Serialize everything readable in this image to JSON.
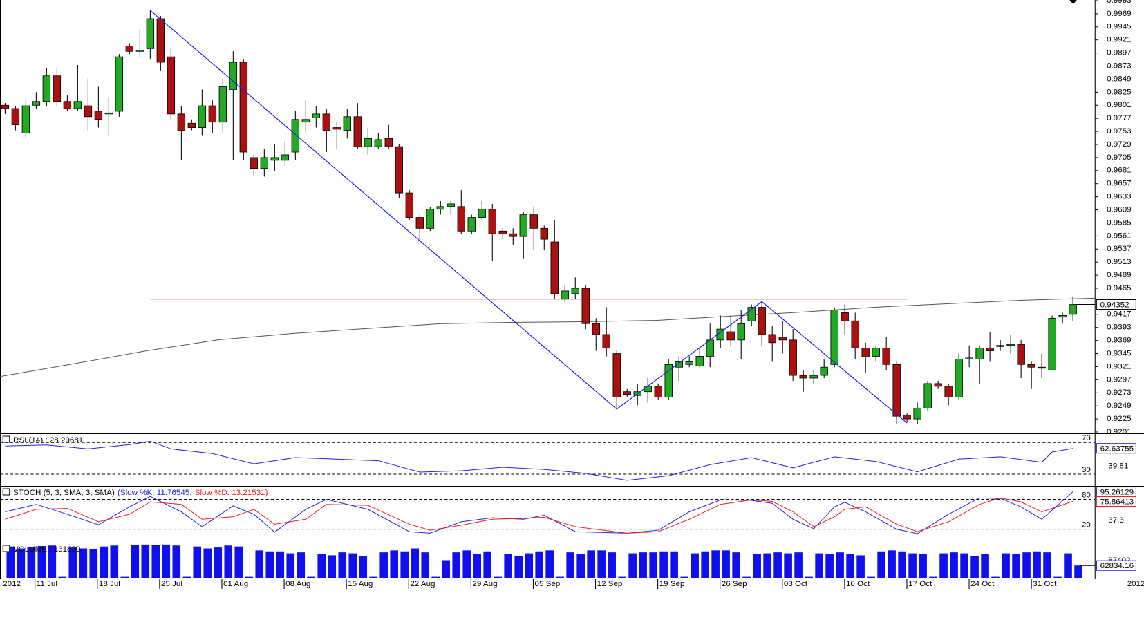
{
  "chart_data": [
    {
      "type": "candlestick",
      "up_color": "#22aa22",
      "down_color": "#aa1111",
      "open": [
        0.9801,
        0.9795,
        0.975,
        0.9801,
        0.9808,
        0.9855,
        0.9808,
        0.9795,
        0.98,
        0.979,
        0.9785,
        0.979,
        0.991,
        0.99,
        0.9905,
        0.996,
        0.989,
        0.9785,
        0.9768,
        0.976,
        0.98,
        0.977,
        0.983,
        0.988,
        0.9705,
        0.9685,
        0.97,
        0.97,
        0.9715,
        0.977,
        0.9778,
        0.9785,
        0.976,
        0.9755,
        0.978,
        0.9725,
        0.9725,
        0.974,
        0.9725,
        0.964,
        0.9595,
        0.9575,
        0.961,
        0.9615,
        0.9615,
        0.957,
        0.9595,
        0.961,
        0.957,
        0.9565,
        0.956,
        0.96,
        0.9575,
        0.955,
        0.9445,
        0.9455,
        0.9465,
        0.94,
        0.938,
        0.9345,
        0.9275,
        0.9268,
        0.9275,
        0.9285,
        0.9265,
        0.932,
        0.9325,
        0.9322,
        0.934,
        0.937,
        0.9385,
        0.937,
        0.9405,
        0.943,
        0.938,
        0.9375,
        0.937,
        0.9305,
        0.93,
        0.9305,
        0.9325,
        0.942,
        0.9405,
        0.9355,
        0.934,
        0.9355,
        0.9325,
        0.9232,
        0.9225,
        0.9245,
        0.929,
        0.9285,
        0.9265,
        0.9335,
        0.9335,
        0.9355,
        0.9358,
        0.936,
        0.9362,
        0.9325,
        0.932,
        0.9315,
        0.9412,
        0.9417
      ],
      "high": [
        0.9805,
        0.98,
        0.981,
        0.9825,
        0.987,
        0.987,
        0.982,
        0.9875,
        0.985,
        0.9835,
        0.9815,
        0.9895,
        0.9915,
        0.994,
        0.9975,
        0.9965,
        0.9905,
        0.98,
        0.9775,
        0.983,
        0.981,
        0.985,
        0.99,
        0.9885,
        0.971,
        0.972,
        0.973,
        0.9735,
        0.979,
        0.981,
        0.98,
        0.9795,
        0.977,
        0.9795,
        0.9805,
        0.976,
        0.975,
        0.9765,
        0.973,
        0.9645,
        0.96,
        0.9615,
        0.9625,
        0.9625,
        0.9645,
        0.96,
        0.9625,
        0.962,
        0.9575,
        0.9575,
        0.9605,
        0.9615,
        0.958,
        0.959,
        0.947,
        0.9485,
        0.947,
        0.941,
        0.943,
        0.935,
        0.928,
        0.929,
        0.93,
        0.929,
        0.9335,
        0.934,
        0.934,
        0.9355,
        0.94,
        0.9415,
        0.9415,
        0.9425,
        0.9435,
        0.944,
        0.9395,
        0.9405,
        0.939,
        0.9315,
        0.9315,
        0.9335,
        0.943,
        0.9435,
        0.942,
        0.9365,
        0.936,
        0.9375,
        0.933,
        0.9235,
        0.9255,
        0.9295,
        0.9295,
        0.929,
        0.9345,
        0.936,
        0.936,
        0.9385,
        0.937,
        0.938,
        0.937,
        0.933,
        0.9345,
        0.9415,
        0.942,
        0.945
      ],
      "low": [
        0.9785,
        0.9755,
        0.974,
        0.9795,
        0.98,
        0.98,
        0.979,
        0.979,
        0.9755,
        0.976,
        0.9745,
        0.978,
        0.9895,
        0.989,
        0.9885,
        0.9865,
        0.9775,
        0.97,
        0.9755,
        0.9745,
        0.975,
        0.975,
        0.97,
        0.97,
        0.967,
        0.967,
        0.968,
        0.969,
        0.97,
        0.975,
        0.976,
        0.9715,
        0.972,
        0.974,
        0.972,
        0.971,
        0.972,
        0.972,
        0.963,
        0.959,
        0.9555,
        0.957,
        0.96,
        0.96,
        0.9565,
        0.9565,
        0.959,
        0.9515,
        0.9555,
        0.9545,
        0.952,
        0.9535,
        0.9535,
        0.9445,
        0.944,
        0.9445,
        0.939,
        0.935,
        0.934,
        0.9245,
        0.9265,
        0.925,
        0.9255,
        0.926,
        0.926,
        0.9295,
        0.932,
        0.932,
        0.932,
        0.9355,
        0.936,
        0.9335,
        0.9395,
        0.936,
        0.933,
        0.9345,
        0.9295,
        0.9275,
        0.929,
        0.93,
        0.932,
        0.938,
        0.9335,
        0.931,
        0.933,
        0.9315,
        0.9215,
        0.922,
        0.9215,
        0.924,
        0.928,
        0.925,
        0.926,
        0.932,
        0.929,
        0.933,
        0.935,
        0.9345,
        0.93,
        0.928,
        0.93,
        0.9315,
        0.94,
        0.9405
      ],
      "close": [
        0.9795,
        0.9765,
        0.98,
        0.9808,
        0.9855,
        0.9808,
        0.9795,
        0.9808,
        0.978,
        0.9775,
        0.9787,
        0.989,
        0.99,
        0.9902,
        0.996,
        0.988,
        0.9785,
        0.9755,
        0.976,
        0.98,
        0.977,
        0.9835,
        0.988,
        0.9715,
        0.9685,
        0.9705,
        0.9705,
        0.971,
        0.9775,
        0.9775,
        0.9785,
        0.9755,
        0.9757,
        0.978,
        0.9725,
        0.974,
        0.9738,
        0.9725,
        0.964,
        0.9595,
        0.9575,
        0.961,
        0.9615,
        0.962,
        0.957,
        0.9595,
        0.961,
        0.9565,
        0.9565,
        0.956,
        0.96,
        0.9575,
        0.9555,
        0.9455,
        0.946,
        0.9465,
        0.94,
        0.938,
        0.9355,
        0.9265,
        0.927,
        0.9275,
        0.9285,
        0.9265,
        0.9325,
        0.933,
        0.933,
        0.934,
        0.937,
        0.939,
        0.937,
        0.94,
        0.943,
        0.938,
        0.9365,
        0.937,
        0.9305,
        0.93,
        0.9305,
        0.932,
        0.9425,
        0.9405,
        0.9355,
        0.934,
        0.9355,
        0.9325,
        0.923,
        0.9225,
        0.9245,
        0.929,
        0.9285,
        0.9265,
        0.9335,
        0.9337,
        0.9355,
        0.935,
        0.936,
        0.9362,
        0.9325,
        0.932,
        0.9318,
        0.941,
        0.9415,
        0.9435
      ],
      "ylim": [
        0.9201,
        0.9993
      ],
      "yticks": [
        0.9201,
        0.9225,
        0.9249,
        0.9273,
        0.9297,
        0.9321,
        0.9345,
        0.9369,
        0.9393,
        0.9417,
        0.9465,
        0.9489,
        0.9513,
        0.9537,
        0.9561,
        0.9585,
        0.9609,
        0.9633,
        0.9657,
        0.9681,
        0.9705,
        0.9729,
        0.9753,
        0.9777,
        0.9801,
        0.9825,
        0.9849,
        0.9873,
        0.9897,
        0.9921,
        0.9945,
        0.9969,
        0.9993
      ],
      "last_price": 0.94352,
      "moving_average": {
        "color": "#555555",
        "x": [
          -0.5,
          6.5,
          13.6,
          20.6,
          27.7,
          34.7,
          41.8,
          48.8,
          55.8,
          62.9,
          69.9,
          77,
          84,
          91,
          98.1,
          105.1
        ],
        "values": [
          0.93029,
          0.93258,
          0.935,
          0.93704,
          0.93818,
          0.93908,
          0.93997,
          0.94022,
          0.94035,
          0.9406,
          0.94137,
          0.94213,
          0.94302,
          0.94366,
          0.9443,
          0.94468
        ]
      },
      "trend_line": {
        "color": "#2222ee",
        "x": [
          14,
          59,
          73,
          87
        ],
        "values": [
          0.99752,
          0.92431,
          0.94404,
          0.92175
        ]
      },
      "level_line": {
        "color": "#ee2222",
        "x": [
          14,
          87
        ],
        "value": 0.9445
      },
      "x_labels": [
        "2012",
        "11 Jul",
        "18 Jul",
        "25 Jul",
        "01 Aug",
        "08 Aug",
        "15 Aug",
        "22 Aug",
        "29 Aug",
        "05 Sep",
        "12 Sep",
        "19 Sep",
        "26 Sep",
        "03 Oct",
        "10 Oct",
        "17 Oct",
        "24 Oct",
        "31 Oct",
        "2012"
      ]
    },
    {
      "type": "line",
      "title_parts": [
        "RSI (14) : 28.29681"
      ],
      "ylim": [
        16,
        79
      ],
      "levels": [
        70,
        30
      ],
      "x": [
        0,
        4,
        8,
        12,
        14,
        16,
        20,
        24,
        28,
        32,
        36,
        40,
        44,
        48,
        52,
        56,
        60,
        64,
        68,
        72,
        76,
        80,
        84,
        88,
        92,
        96,
        100,
        101,
        103
      ],
      "series": [
        {
          "color": "#2222dd",
          "values": [
            65.7,
            67,
            62,
            67.4,
            71.7,
            62,
            56,
            43,
            51,
            49,
            47,
            32.6,
            34.3,
            38.7,
            36,
            31,
            22.2,
            28,
            42,
            50.9,
            38,
            52,
            46,
            33,
            49,
            52,
            45,
            58,
            62.6
          ]
        }
      ],
      "last_values": [
        62.63755
      ],
      "marks": [
        39.81
      ]
    },
    {
      "type": "line",
      "title_parts": [
        "STOCH (5, 3, SMA, 3, SMA)",
        "(Slow %K: 11.76545,",
        "Slow %D: 13.21531)"
      ],
      "ylim": [
        0,
        103
      ],
      "levels": [
        80,
        20
      ],
      "x": [
        0,
        3,
        6,
        9,
        12,
        14,
        17,
        19,
        22,
        24,
        26,
        29,
        31,
        35,
        39,
        41,
        44,
        47,
        50,
        52,
        55,
        60,
        63,
        66,
        69,
        72,
        74,
        76,
        78,
        80,
        81,
        83,
        86,
        88,
        91,
        94,
        96,
        98,
        100,
        103
      ],
      "series": [
        {
          "color": "#2222dd",
          "values": [
            55,
            70,
            50,
            29,
            65,
            86,
            55,
            25,
            67,
            50,
            14,
            60,
            80,
            60,
            15,
            12,
            35,
            43,
            40,
            48,
            15,
            12,
            18,
            55,
            79,
            78,
            72,
            40,
            21,
            65,
            74,
            55,
            20,
            11,
            50,
            83,
            82,
            65,
            40,
            95.3
          ]
        },
        {
          "color": "#ee2222",
          "values": [
            40,
            60,
            62,
            35,
            50,
            75,
            70,
            40,
            45,
            60,
            30,
            40,
            70,
            68,
            30,
            18,
            28,
            40,
            42,
            44,
            25,
            12,
            15,
            40,
            70,
            79,
            76,
            55,
            25,
            45,
            60,
            65,
            30,
            15,
            35,
            70,
            83,
            75,
            55,
            76
          ]
        }
      ],
      "last_values": [
        95.26129,
        75.86413
      ],
      "marks": [
        37.3
      ]
    },
    {
      "type": "bar",
      "title_parts": [
        "VOLUME : 131839"
      ],
      "ylim": [
        0,
        180000
      ],
      "color": "#1010ee",
      "values": [
        160000,
        150000,
        158000,
        162000,
        165000,
        5000,
        155000,
        150000,
        145000,
        160000,
        165000,
        5000,
        168000,
        170000,
        168000,
        170000,
        165000,
        5000,
        160000,
        150000,
        155000,
        165000,
        160000,
        5000,
        140000,
        135000,
        135000,
        125000,
        130000,
        5000,
        120000,
        115000,
        130000,
        125000,
        110000,
        5000,
        130000,
        140000,
        135000,
        150000,
        130000,
        5000,
        90000,
        130000,
        140000,
        120000,
        135000,
        5000,
        120000,
        110000,
        125000,
        135000,
        140000,
        5000,
        130000,
        120000,
        140000,
        140000,
        130000,
        5000,
        125000,
        130000,
        130000,
        135000,
        135000,
        5000,
        125000,
        135000,
        140000,
        140000,
        130000,
        5000,
        120000,
        125000,
        130000,
        125000,
        130000,
        5000,
        125000,
        120000,
        130000,
        120000,
        115000,
        5000,
        135000,
        140000,
        135000,
        125000,
        120000,
        5000,
        125000,
        130000,
        125000,
        110000,
        120000,
        5000,
        125000,
        120000,
        130000,
        135000,
        130000,
        5000,
        125000,
        62834.16
      ],
      "last_values": [
        62834.16
      ],
      "marks": [
        87402
      ]
    }
  ]
}
